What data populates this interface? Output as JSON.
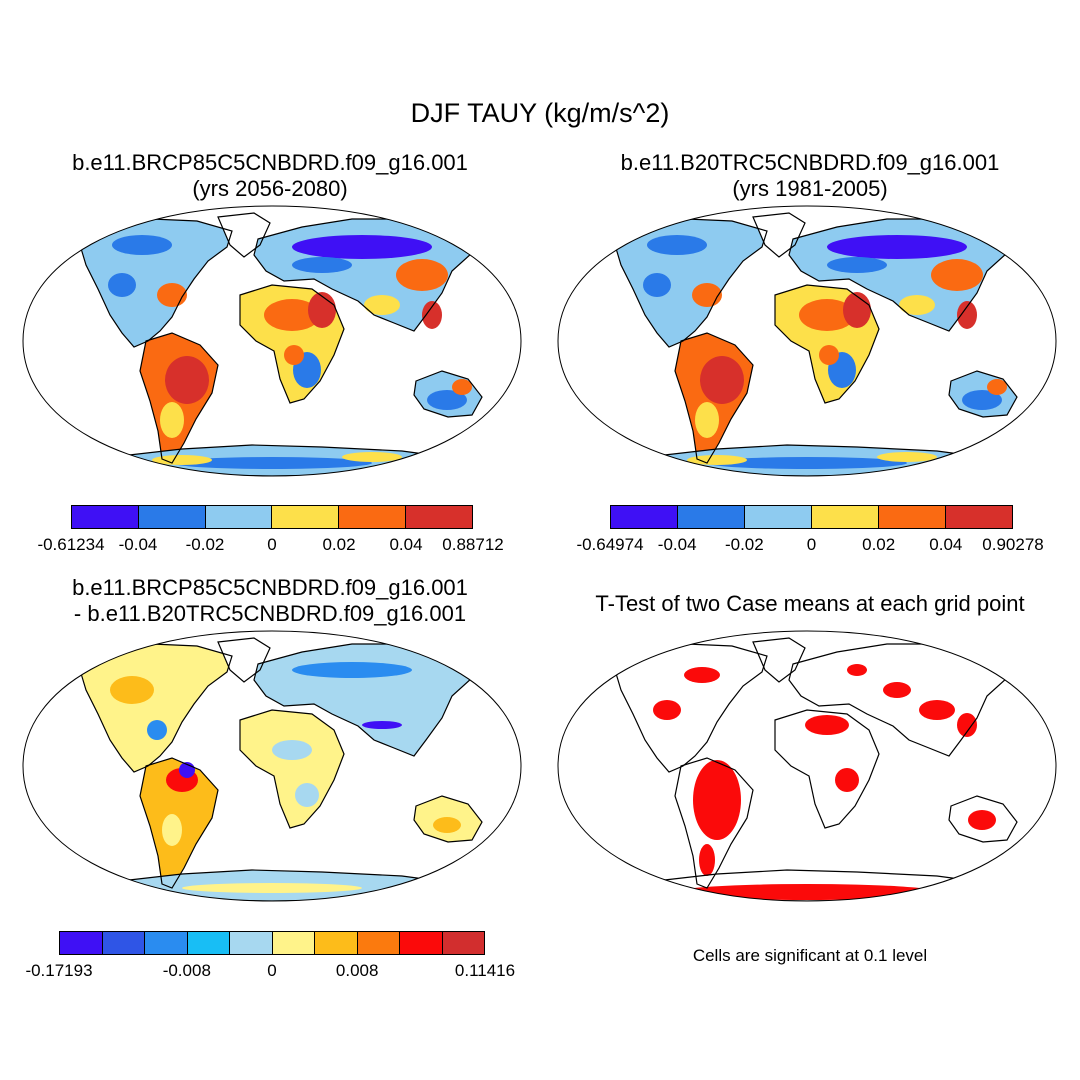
{
  "title": "DJF TAUY (kg/m/s^2)",
  "panels": [
    {
      "title_line1": "b.e11.BRCP85C5CNBDRD.f09_g16.001",
      "title_line2": "(yrs 2056-2080)"
    },
    {
      "title_line1": "b.e11.B20TRC5CNBDRD.f09_g16.001",
      "title_line2": "(yrs 1981-2005)"
    },
    {
      "title_line1": "b.e11.BRCP85C5CNBDRD.f09_g16.001",
      "title_line2": "- b.e11.B20TRC5CNBDRD.f09_g16.001"
    },
    {
      "title_line1": "T-Test of two Case means at each grid point"
    }
  ],
  "colorbars": {
    "case1": {
      "colors": [
        "#3f10f5",
        "#2a7ae8",
        "#8ecbf0",
        "#fde04a",
        "#fa6a12",
        "#d7302b"
      ],
      "labels": [
        "-0.61234",
        "-0.04",
        "-0.02",
        "0",
        "0.02",
        "0.04",
        "0.88712"
      ]
    },
    "case2": {
      "colors": [
        "#3f10f5",
        "#2a7ae8",
        "#8ecbf0",
        "#fde04a",
        "#fa6a12",
        "#d7302b"
      ],
      "labels": [
        "-0.64974",
        "-0.04",
        "-0.02",
        "0",
        "0.02",
        "0.04",
        "0.90278"
      ]
    },
    "diff": {
      "colors": [
        "#3f10f5",
        "#2f55e6",
        "#2a8cf0",
        "#18bef5",
        "#a7d8f0",
        "#fff38a",
        "#fdbc1a",
        "#fb7a0e",
        "#fb0a0a",
        "#d22e2e"
      ],
      "labels": [
        "-0.17193",
        "-0.008",
        "0",
        "0.008",
        "0.11416"
      ]
    }
  },
  "note": "Cells are significant at 0.1 level"
}
